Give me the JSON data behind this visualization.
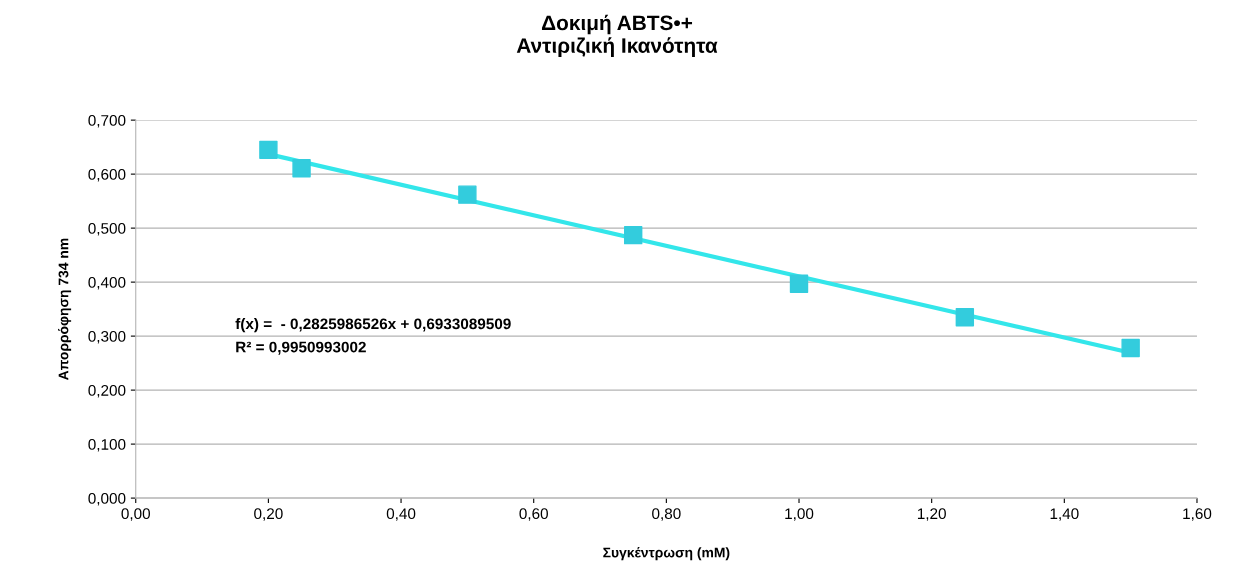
{
  "chart_data": {
    "type": "scatter",
    "title": "Δοκιμή ABTS•+\nΑντιριζική Ικανότητα",
    "xlabel": "Συγκέντρωση (mM)",
    "ylabel": "Απορρόφηση 734 nm",
    "x": [
      0.2,
      0.25,
      0.5,
      0.75,
      1.0,
      1.25,
      1.5
    ],
    "series": [
      {
        "color": "#33ccdd",
        "marker": "square",
        "values": [
          0.645,
          0.611,
          0.562,
          0.487,
          0.397,
          0.335,
          0.278
        ]
      },
      {
        "type": "line",
        "color": "#33e6ea",
        "marker": "none",
        "x": [
          0.2,
          1.5
        ],
        "values": [
          0.637,
          0.269
        ]
      }
    ],
    "annotations": [
      "f(x) =  - 0,2825986526x + 0,6933089509",
      "R² = 0,9950993002"
    ],
    "xlim": [
      0,
      1.6
    ],
    "ylim": [
      0,
      0.7
    ],
    "xticks": [
      {
        "value": 0,
        "label": "0,00"
      },
      {
        "value": 0.2,
        "label": "0,20"
      },
      {
        "value": 0.4,
        "label": "0,40"
      },
      {
        "value": 0.6,
        "label": "0,60"
      },
      {
        "value": 0.8,
        "label": "0,80"
      },
      {
        "value": 1.0,
        "label": "1,00"
      },
      {
        "value": 1.2,
        "label": "1,20"
      },
      {
        "value": 1.4,
        "label": "1,40"
      },
      {
        "value": 1.6,
        "label": "1,60"
      }
    ],
    "yticks": [
      {
        "value": 0,
        "label": "0,000"
      },
      {
        "value": 0.1,
        "label": "0,100"
      },
      {
        "value": 0.2,
        "label": "0,200"
      },
      {
        "value": 0.3,
        "label": "0,300"
      },
      {
        "value": 0.4,
        "label": "0,400"
      },
      {
        "value": 0.5,
        "label": "0,500"
      },
      {
        "value": 0.6,
        "label": "0,600"
      },
      {
        "value": 0.7,
        "label": "0,700"
      }
    ],
    "grid": "y",
    "legend": false
  }
}
